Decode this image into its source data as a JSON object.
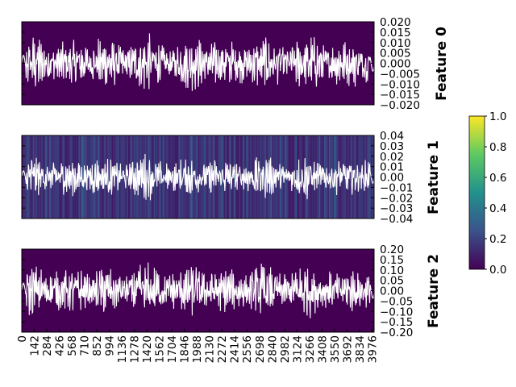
{
  "chart_data": {
    "type": "line",
    "n_samples": 4000,
    "x_tick_labels": [
      "0",
      "142",
      "284",
      "426",
      "568",
      "710",
      "852",
      "994",
      "1136",
      "1278",
      "1420",
      "1562",
      "1704",
      "1846",
      "1988",
      "2130",
      "2272",
      "2414",
      "2556",
      "2698",
      "2840",
      "2982",
      "3124",
      "3266",
      "3408",
      "3550",
      "3692",
      "3834",
      "3976"
    ],
    "line_color": "#ffffff",
    "colormap": "viridis",
    "colorbar": {
      "range": [
        0.0,
        1.0
      ],
      "tick_labels": [
        "0.0",
        "0.2",
        "0.4",
        "0.6",
        "0.8",
        "1.0"
      ],
      "colors": [
        "#440154",
        "#3b528b",
        "#21918c",
        "#5ec962",
        "#fde725"
      ]
    },
    "panels": [
      {
        "label": "Feature 0",
        "ylim": [
          -0.02,
          0.02
        ],
        "y_tick_labels": [
          "0.020",
          "0.015",
          "0.010",
          "0.005",
          "0.000",
          "−0.005",
          "−0.010",
          "−0.015",
          "−0.020"
        ],
        "amplitude": 0.0095,
        "background_value": 0.0,
        "stripes": false
      },
      {
        "label": "Feature 1",
        "ylim": [
          -0.04,
          0.04
        ],
        "y_tick_labels": [
          "0.04",
          "0.03",
          "0.02",
          "0.01",
          "0.00",
          "−0.01",
          "−0.02",
          "−0.03",
          "−0.04"
        ],
        "amplitude": 0.015,
        "background_value": 0.05,
        "stripes": true
      },
      {
        "label": "Feature 2",
        "ylim": [
          -0.2,
          0.2
        ],
        "y_tick_labels": [
          "0.20",
          "0.15",
          "0.10",
          "0.05",
          "0.00",
          "−0.05",
          "−0.10",
          "−0.15",
          "−0.20"
        ],
        "amplitude": 0.09,
        "background_value": 0.0,
        "stripes": false
      }
    ]
  }
}
